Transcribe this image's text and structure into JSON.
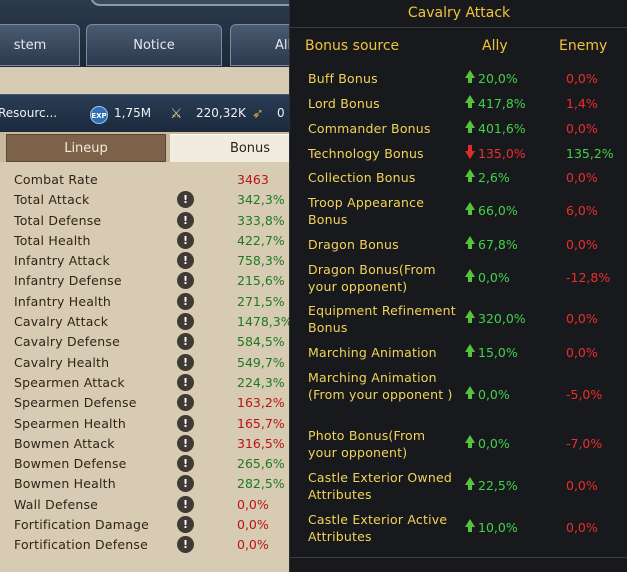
{
  "nav": {
    "tab1": "stem",
    "tab2": "Notice",
    "tab3": "All"
  },
  "resources": {
    "label": "Resourc...",
    "exp_icon": "EXP",
    "exp": "1,75M",
    "power": "220,32K",
    "feather": "0"
  },
  "tabs": {
    "lineup": "Lineup",
    "bonus": "Bonus"
  },
  "stats": [
    {
      "label": "Combat Rate",
      "value": "3463",
      "color": "red",
      "info": false
    },
    {
      "label": "Total Attack",
      "value": "342,3%",
      "color": "green",
      "info": true
    },
    {
      "label": "Total Defense",
      "value": "333,8%",
      "color": "green",
      "info": true
    },
    {
      "label": "Total Health",
      "value": "422,7%",
      "color": "green",
      "info": true
    },
    {
      "label": "Infantry Attack",
      "value": "758,3%",
      "color": "green",
      "info": true
    },
    {
      "label": "Infantry Defense",
      "value": "215,6%",
      "color": "green",
      "info": true
    },
    {
      "label": "Infantry Health",
      "value": "271,5%",
      "color": "green",
      "info": true
    },
    {
      "label": "Cavalry Attack",
      "value": "1478,3%",
      "color": "green",
      "info": true
    },
    {
      "label": "Cavalry Defense",
      "value": "584,5%",
      "color": "green",
      "info": true
    },
    {
      "label": "Cavalry Health",
      "value": "549,7%",
      "color": "green",
      "info": true
    },
    {
      "label": "Spearmen Attack",
      "value": "224,3%",
      "color": "green",
      "info": true
    },
    {
      "label": "Spearmen Defense",
      "value": "163,2%",
      "color": "red",
      "info": true
    },
    {
      "label": "Spearmen Health",
      "value": "165,7%",
      "color": "red",
      "info": true
    },
    {
      "label": "Bowmen Attack",
      "value": "316,5%",
      "color": "red",
      "info": true
    },
    {
      "label": "Bowmen Defense",
      "value": "265,6%",
      "color": "green",
      "info": true
    },
    {
      "label": "Bowmen Health",
      "value": "282,5%",
      "color": "green",
      "info": true
    },
    {
      "label": "Wall Defense",
      "value": "0,0%",
      "color": "red",
      "info": true
    },
    {
      "label": "Fortification Damage",
      "value": "0,0%",
      "color": "red",
      "info": true
    },
    {
      "label": "Fortification Defense",
      "value": "0,0%",
      "color": "red",
      "info": true
    }
  ],
  "popup": {
    "title": "Cavalry Attack",
    "headers": {
      "source": "Bonus source",
      "ally": "Ally",
      "enemy": "Enemy"
    },
    "rows": [
      {
        "source": "Buff Bonus",
        "ally": "20,0%",
        "trend": "up",
        "ally_color": "green",
        "enemy": "0,0%"
      },
      {
        "source": "Lord Bonus",
        "ally": "417,8%",
        "trend": "up",
        "ally_color": "green",
        "enemy": "1,4%"
      },
      {
        "source": "Commander Bonus",
        "ally": "401,6%",
        "trend": "up",
        "ally_color": "green",
        "enemy": "0,0%"
      },
      {
        "source": "Technology Bonus",
        "ally": "135,0%",
        "trend": "down",
        "ally_color": "red",
        "enemy": "135,2%"
      },
      {
        "source": "Collection Bonus",
        "ally": "2,6%",
        "trend": "up",
        "ally_color": "green",
        "enemy": "0,0%"
      },
      {
        "source": "Troop Appearance Bonus",
        "ally": "66,0%",
        "trend": "up",
        "ally_color": "green",
        "enemy": "6,0%"
      },
      {
        "source": "Dragon Bonus",
        "ally": "67,8%",
        "trend": "up",
        "ally_color": "green",
        "enemy": "0,0%"
      },
      {
        "source": "Dragon Bonus(From your opponent)",
        "ally": "0,0%",
        "trend": "up",
        "ally_color": "green",
        "enemy": "-12,8%"
      },
      {
        "source": "Equipment Refinement Bonus",
        "ally": "320,0%",
        "trend": "up",
        "ally_color": "green",
        "enemy": "0,0%"
      },
      {
        "source": "Marching Animation",
        "ally": "15,0%",
        "trend": "up",
        "ally_color": "green",
        "enemy": "0,0%"
      },
      {
        "source": "Marching Animation (From your opponent )",
        "ally": "0,0%",
        "trend": "up",
        "ally_color": "green",
        "enemy": "-5,0%"
      },
      {
        "source": "Photo Bonus(From your opponent)",
        "ally": "0,0%",
        "trend": "up",
        "ally_color": "green",
        "enemy": "-7,0%"
      },
      {
        "source": "Castle Exterior Owned Attributes",
        "ally": "22,5%",
        "trend": "up",
        "ally_color": "green",
        "enemy": "0,0%"
      },
      {
        "source": "Castle Exterior Active Attributes",
        "ally": "10,0%",
        "trend": "up",
        "ally_color": "green",
        "enemy": "0,0%"
      }
    ]
  },
  "colors": {
    "title_gold": "#f1c33a",
    "value_green": "#45d14a",
    "value_red": "#ec2e2e"
  }
}
